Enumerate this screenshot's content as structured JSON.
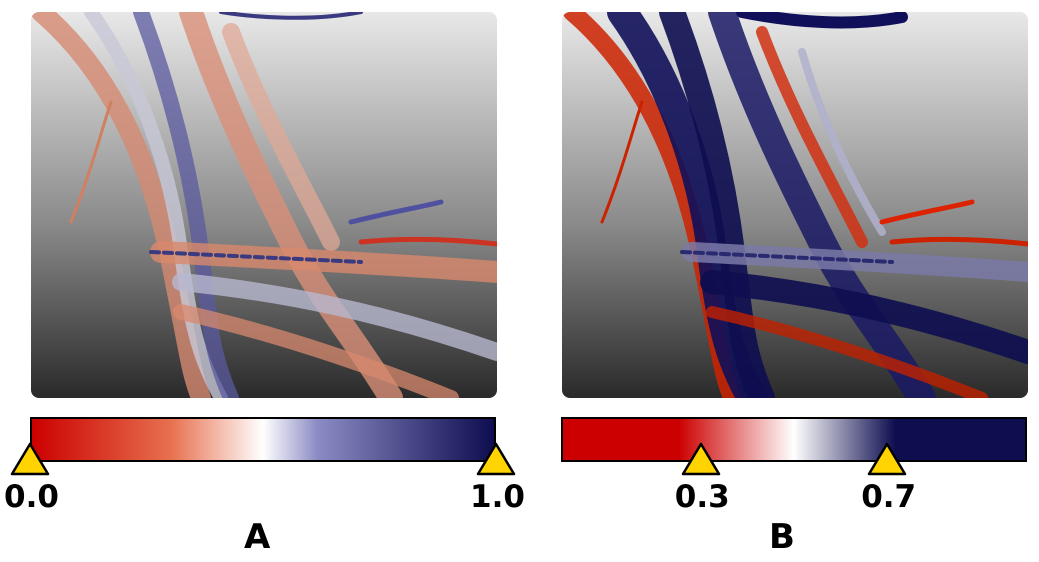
{
  "panels": [
    {
      "letter": "A",
      "colorbar": {
        "colors": [
          "#cc0000",
          "#e7704f",
          "#ffffff",
          "#8a8ac4",
          "#0d0d50"
        ],
        "markers": [
          {
            "value": 0.0,
            "label": "0.0"
          },
          {
            "value": 1.0,
            "label": "1.0"
          }
        ]
      }
    },
    {
      "letter": "B",
      "colorbar": {
        "colors": [
          "#cc0000",
          "#cc0000",
          "#ffffff",
          "#0d0d50",
          "#0d0d50"
        ],
        "markers": [
          {
            "value": 0.3,
            "label": "0.3"
          },
          {
            "value": 0.7,
            "label": "0.7"
          }
        ]
      }
    }
  ],
  "marker_color": "#ffd400"
}
